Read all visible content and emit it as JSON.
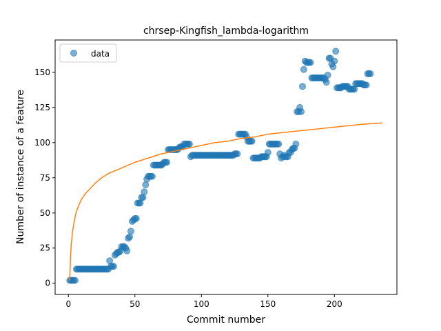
{
  "chart_data": {
    "type": "scatter",
    "title": "chrsep-Kingfish_lambda-logarithm",
    "xlabel": "Commit number",
    "ylabel": "Number of instance of a feature",
    "xlim": [
      -10,
      247
    ],
    "ylim": [
      -8,
      173
    ],
    "xticks": [
      0,
      50,
      100,
      150,
      200
    ],
    "yticks": [
      0,
      25,
      50,
      75,
      100,
      125,
      150
    ],
    "legend": {
      "placement": "top-left",
      "entries": [
        "data"
      ]
    },
    "grid": false,
    "colors": {
      "data": "#1f77b4",
      "fit": "#ff7f0e"
    },
    "series": [
      {
        "name": "data",
        "kind": "scatter",
        "points": [
          [
            1,
            2
          ],
          [
            2,
            2
          ],
          [
            3,
            2
          ],
          [
            4,
            2
          ],
          [
            5,
            2
          ],
          [
            6,
            10
          ],
          [
            7,
            10
          ],
          [
            8,
            10
          ],
          [
            9,
            10
          ],
          [
            10,
            10
          ],
          [
            11,
            10
          ],
          [
            12,
            10
          ],
          [
            13,
            10
          ],
          [
            14,
            10
          ],
          [
            15,
            10
          ],
          [
            16,
            10
          ],
          [
            17,
            10
          ],
          [
            18,
            10
          ],
          [
            19,
            10
          ],
          [
            20,
            10
          ],
          [
            21,
            10
          ],
          [
            22,
            10
          ],
          [
            23,
            10
          ],
          [
            24,
            10
          ],
          [
            25,
            10
          ],
          [
            26,
            10
          ],
          [
            27,
            10
          ],
          [
            28,
            10
          ],
          [
            29,
            10
          ],
          [
            30,
            10
          ],
          [
            31,
            16
          ],
          [
            32,
            12
          ],
          [
            33,
            12
          ],
          [
            34,
            12
          ],
          [
            35,
            20
          ],
          [
            36,
            21
          ],
          [
            37,
            22
          ],
          [
            38,
            22
          ],
          [
            39,
            23
          ],
          [
            40,
            26
          ],
          [
            41,
            26
          ],
          [
            42,
            26
          ],
          [
            43,
            25
          ],
          [
            44,
            23
          ],
          [
            45,
            32
          ],
          [
            46,
            33
          ],
          [
            47,
            37
          ],
          [
            48,
            44
          ],
          [
            49,
            45
          ],
          [
            50,
            46
          ],
          [
            51,
            46
          ],
          [
            52,
            57
          ],
          [
            53,
            57
          ],
          [
            54,
            57
          ],
          [
            55,
            61
          ],
          [
            56,
            61
          ],
          [
            57,
            65
          ],
          [
            58,
            70
          ],
          [
            59,
            74
          ],
          [
            60,
            76
          ],
          [
            61,
            76
          ],
          [
            62,
            76
          ],
          [
            63,
            76
          ],
          [
            64,
            84
          ],
          [
            65,
            84
          ],
          [
            66,
            84
          ],
          [
            67,
            84
          ],
          [
            68,
            84
          ],
          [
            69,
            84
          ],
          [
            70,
            84
          ],
          [
            71,
            85
          ],
          [
            72,
            86
          ],
          [
            73,
            86
          ],
          [
            74,
            86
          ],
          [
            75,
            95
          ],
          [
            76,
            95
          ],
          [
            77,
            95
          ],
          [
            78,
            95
          ],
          [
            79,
            95
          ],
          [
            80,
            95
          ],
          [
            81,
            95
          ],
          [
            82,
            95
          ],
          [
            83,
            96
          ],
          [
            84,
            97
          ],
          [
            85,
            97
          ],
          [
            86,
            97
          ],
          [
            87,
            99
          ],
          [
            88,
            99
          ],
          [
            89,
            99
          ],
          [
            90,
            99
          ],
          [
            91,
            99
          ],
          [
            92,
            90
          ],
          [
            93,
            91
          ],
          [
            94,
            91
          ],
          [
            95,
            91
          ],
          [
            96,
            91
          ],
          [
            97,
            91
          ],
          [
            98,
            91
          ],
          [
            99,
            91
          ],
          [
            100,
            91
          ],
          [
            101,
            91
          ],
          [
            102,
            91
          ],
          [
            103,
            91
          ],
          [
            104,
            91
          ],
          [
            105,
            91
          ],
          [
            106,
            91
          ],
          [
            107,
            91
          ],
          [
            108,
            91
          ],
          [
            109,
            91
          ],
          [
            110,
            91
          ],
          [
            111,
            91
          ],
          [
            112,
            91
          ],
          [
            113,
            91
          ],
          [
            114,
            91
          ],
          [
            115,
            91
          ],
          [
            116,
            91
          ],
          [
            117,
            91
          ],
          [
            118,
            91
          ],
          [
            119,
            91
          ],
          [
            120,
            91
          ],
          [
            121,
            91
          ],
          [
            122,
            91
          ],
          [
            123,
            91
          ],
          [
            124,
            91
          ],
          [
            125,
            92
          ],
          [
            126,
            92
          ],
          [
            127,
            92
          ],
          [
            128,
            106
          ],
          [
            129,
            106
          ],
          [
            130,
            106
          ],
          [
            131,
            106
          ],
          [
            132,
            106
          ],
          [
            133,
            106
          ],
          [
            134,
            104
          ],
          [
            135,
            101
          ],
          [
            136,
            101
          ],
          [
            137,
            101
          ],
          [
            138,
            101
          ],
          [
            139,
            89
          ],
          [
            140,
            89
          ],
          [
            141,
            89
          ],
          [
            142,
            89
          ],
          [
            143,
            89
          ],
          [
            144,
            89
          ],
          [
            145,
            90
          ],
          [
            146,
            90
          ],
          [
            147,
            90
          ],
          [
            148,
            90
          ],
          [
            149,
            90
          ],
          [
            150,
            93
          ],
          [
            151,
            99
          ],
          [
            152,
            99
          ],
          [
            153,
            99
          ],
          [
            154,
            99
          ],
          [
            155,
            99
          ],
          [
            156,
            99
          ],
          [
            157,
            99
          ],
          [
            158,
            99
          ],
          [
            159,
            92
          ],
          [
            160,
            89
          ],
          [
            161,
            90
          ],
          [
            162,
            91
          ],
          [
            163,
            90
          ],
          [
            164,
            90
          ],
          [
            165,
            90
          ],
          [
            166,
            93
          ],
          [
            167,
            93
          ],
          [
            168,
            95
          ],
          [
            169,
            96
          ],
          [
            170,
            96
          ],
          [
            171,
            99
          ],
          [
            172,
            122
          ],
          [
            173,
            122
          ],
          [
            174,
            125
          ],
          [
            175,
            122
          ],
          [
            176,
            140
          ],
          [
            177,
            152
          ],
          [
            178,
            158
          ],
          [
            179,
            157
          ],
          [
            180,
            157
          ],
          [
            181,
            157
          ],
          [
            182,
            157
          ],
          [
            183,
            146
          ],
          [
            184,
            146
          ],
          [
            185,
            146
          ],
          [
            186,
            146
          ],
          [
            187,
            146
          ],
          [
            188,
            146
          ],
          [
            189,
            146
          ],
          [
            190,
            146
          ],
          [
            191,
            146
          ],
          [
            192,
            146
          ],
          [
            193,
            145
          ],
          [
            194,
            143
          ],
          [
            195,
            148
          ],
          [
            196,
            160
          ],
          [
            197,
            160
          ],
          [
            198,
            156
          ],
          [
            199,
            154
          ],
          [
            200,
            158
          ],
          [
            201,
            165
          ],
          [
            202,
            139
          ],
          [
            203,
            139
          ],
          [
            204,
            139
          ],
          [
            205,
            139
          ],
          [
            206,
            140
          ],
          [
            207,
            140
          ],
          [
            208,
            140
          ],
          [
            209,
            140
          ],
          [
            210,
            140
          ],
          [
            211,
            138
          ],
          [
            212,
            138
          ],
          [
            213,
            138
          ],
          [
            214,
            138
          ],
          [
            215,
            138
          ],
          [
            216,
            142
          ],
          [
            217,
            142
          ],
          [
            218,
            142
          ],
          [
            219,
            142
          ],
          [
            220,
            142
          ],
          [
            221,
            142
          ],
          [
            222,
            141
          ],
          [
            223,
            141
          ],
          [
            224,
            141
          ],
          [
            225,
            149
          ],
          [
            226,
            149
          ],
          [
            227,
            149
          ]
        ]
      },
      {
        "name": "",
        "kind": "line",
        "points": [
          [
            1,
            2
          ],
          [
            1.5,
            16
          ],
          [
            2,
            26
          ],
          [
            3,
            36
          ],
          [
            4,
            42
          ],
          [
            5,
            47
          ],
          [
            6,
            51
          ],
          [
            8,
            56
          ],
          [
            10,
            60
          ],
          [
            13,
            64
          ],
          [
            16,
            67
          ],
          [
            20,
            71
          ],
          [
            25,
            75
          ],
          [
            30,
            78
          ],
          [
            40,
            82
          ],
          [
            50,
            86
          ],
          [
            60,
            89
          ],
          [
            70,
            92
          ],
          [
            80,
            94
          ],
          [
            90,
            96
          ],
          [
            100,
            98
          ],
          [
            110,
            100
          ],
          [
            120,
            101
          ],
          [
            130,
            103
          ],
          [
            140,
            104
          ],
          [
            150,
            106
          ],
          [
            160,
            107
          ],
          [
            170,
            108
          ],
          [
            180,
            109
          ],
          [
            190,
            110
          ],
          [
            200,
            111
          ],
          [
            210,
            112
          ],
          [
            220,
            113
          ],
          [
            236,
            114
          ]
        ]
      }
    ]
  }
}
